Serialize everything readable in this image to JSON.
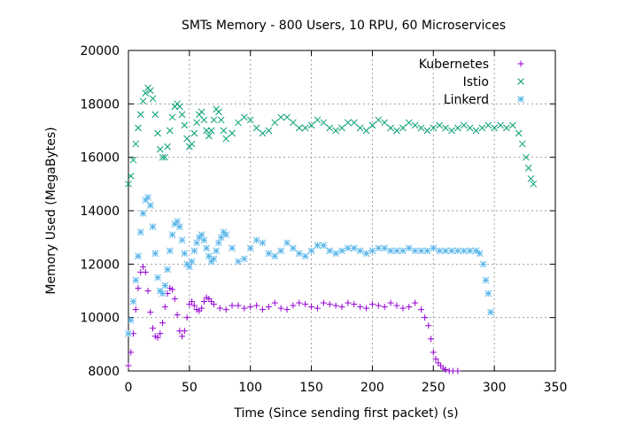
{
  "chart_data": {
    "type": "scatter",
    "title": "SMTs Memory - 800 Users, 10 RPU, 60 Microservices",
    "xlabel": "Time (Since sending first packet) (s)",
    "ylabel": "Memory Used (MegaBytes)",
    "xlim": [
      0,
      350
    ],
    "ylim": [
      8000,
      20000
    ],
    "xticks": [
      0,
      50,
      100,
      150,
      200,
      250,
      300,
      350
    ],
    "yticks": [
      8000,
      10000,
      12000,
      14000,
      16000,
      18000,
      20000
    ],
    "grid": true,
    "legend_position": "top-right",
    "series": [
      {
        "name": "Kubernetes",
        "marker": "plus",
        "color": "#9400d3",
        "x": [
          0,
          2,
          4,
          6,
          8,
          10,
          12,
          14,
          16,
          18,
          20,
          22,
          24,
          26,
          28,
          30,
          32,
          34,
          36,
          38,
          40,
          42,
          44,
          46,
          48,
          50,
          52,
          54,
          56,
          58,
          60,
          62,
          64,
          66,
          68,
          70,
          75,
          80,
          85,
          90,
          95,
          100,
          105,
          110,
          115,
          120,
          125,
          130,
          135,
          140,
          145,
          150,
          155,
          160,
          165,
          170,
          175,
          180,
          185,
          190,
          195,
          200,
          205,
          210,
          215,
          220,
          225,
          230,
          235,
          240,
          243,
          246,
          248,
          250,
          252,
          254,
          256,
          258,
          260,
          263,
          266,
          270
        ],
        "y": [
          8200,
          8700,
          9400,
          10300,
          11100,
          11700,
          11900,
          11700,
          11000,
          10200,
          9600,
          9300,
          9250,
          9400,
          9800,
          10400,
          10900,
          11100,
          11050,
          10700,
          10100,
          9500,
          9300,
          9500,
          10000,
          10500,
          10600,
          10450,
          10300,
          10250,
          10350,
          10600,
          10750,
          10700,
          10600,
          10500,
          10350,
          10300,
          10450,
          10450,
          10350,
          10400,
          10450,
          10300,
          10400,
          10550,
          10350,
          10300,
          10450,
          10550,
          10500,
          10400,
          10350,
          10550,
          10500,
          10450,
          10400,
          10550,
          10500,
          10400,
          10350,
          10500,
          10450,
          10400,
          10550,
          10450,
          10350,
          10400,
          10550,
          10300,
          10000,
          9700,
          9200,
          8700,
          8450,
          8300,
          8200,
          8100,
          8050,
          8000,
          8000,
          8000
        ]
      },
      {
        "name": "Istio",
        "marker": "cross",
        "color": "#009e73",
        "x": [
          0,
          2,
          4,
          6,
          8,
          10,
          12,
          14,
          16,
          18,
          20,
          22,
          24,
          26,
          28,
          30,
          32,
          34,
          36,
          38,
          40,
          42,
          44,
          46,
          48,
          50,
          52,
          54,
          56,
          58,
          60,
          62,
          64,
          66,
          68,
          70,
          72,
          74,
          76,
          78,
          80,
          85,
          90,
          95,
          100,
          105,
          110,
          115,
          120,
          125,
          130,
          135,
          140,
          145,
          150,
          155,
          160,
          165,
          170,
          175,
          180,
          185,
          190,
          195,
          200,
          205,
          210,
          215,
          220,
          225,
          230,
          235,
          240,
          245,
          250,
          255,
          260,
          265,
          270,
          275,
          280,
          285,
          290,
          295,
          300,
          305,
          310,
          315,
          320,
          323,
          326,
          328,
          330,
          332
        ],
        "y": [
          15000,
          15300,
          15900,
          16500,
          17100,
          17600,
          18100,
          18400,
          18600,
          18500,
          18200,
          17600,
          16900,
          16300,
          16000,
          16000,
          16400,
          17000,
          17500,
          17900,
          18000,
          17900,
          17600,
          17200,
          16700,
          16400,
          16500,
          16900,
          17300,
          17600,
          17700,
          17400,
          17000,
          16800,
          17000,
          17400,
          17800,
          17700,
          17400,
          17000,
          16700,
          16900,
          17300,
          17500,
          17400,
          17100,
          16900,
          17000,
          17300,
          17500,
          17500,
          17300,
          17100,
          17100,
          17200,
          17400,
          17300,
          17100,
          17000,
          17100,
          17300,
          17300,
          17100,
          17000,
          17200,
          17400,
          17300,
          17100,
          17000,
          17100,
          17300,
          17200,
          17100,
          17000,
          17100,
          17200,
          17100,
          17000,
          17100,
          17200,
          17100,
          17000,
          17100,
          17200,
          17100,
          17200,
          17100,
          17200,
          16900,
          16500,
          16000,
          15600,
          15200,
          15000
        ]
      },
      {
        "name": "Linkerd",
        "marker": "star",
        "color": "#56b4e9",
        "x": [
          0,
          2,
          4,
          6,
          8,
          10,
          12,
          14,
          16,
          18,
          20,
          22,
          24,
          26,
          28,
          30,
          32,
          34,
          36,
          38,
          40,
          42,
          44,
          46,
          48,
          50,
          52,
          54,
          56,
          58,
          60,
          62,
          64,
          66,
          68,
          70,
          72,
          74,
          76,
          78,
          80,
          85,
          90,
          95,
          100,
          105,
          110,
          115,
          120,
          125,
          130,
          135,
          140,
          145,
          150,
          155,
          160,
          165,
          170,
          175,
          180,
          185,
          190,
          195,
          200,
          205,
          210,
          215,
          220,
          225,
          230,
          235,
          240,
          245,
          250,
          255,
          260,
          265,
          270,
          275,
          280,
          285,
          288,
          291,
          293,
          295,
          297
        ],
        "y": [
          9400,
          9900,
          10600,
          11400,
          12300,
          13200,
          13900,
          14400,
          14500,
          14200,
          13400,
          12400,
          11500,
          11000,
          10900,
          11200,
          11800,
          12500,
          13100,
          13500,
          13600,
          13400,
          12900,
          12400,
          12000,
          11900,
          12100,
          12500,
          12800,
          13000,
          13100,
          12900,
          12600,
          12300,
          12100,
          12200,
          12500,
          12800,
          13000,
          13200,
          13100,
          12600,
          12100,
          12200,
          12600,
          12900,
          12800,
          12400,
          12300,
          12500,
          12800,
          12600,
          12400,
          12300,
          12500,
          12700,
          12700,
          12500,
          12400,
          12500,
          12600,
          12600,
          12500,
          12400,
          12500,
          12600,
          12600,
          12500,
          12500,
          12500,
          12600,
          12500,
          12500,
          12500,
          12600,
          12500,
          12500,
          12500,
          12500,
          12500,
          12500,
          12500,
          12400,
          12000,
          11400,
          10900,
          10200
        ]
      }
    ]
  }
}
